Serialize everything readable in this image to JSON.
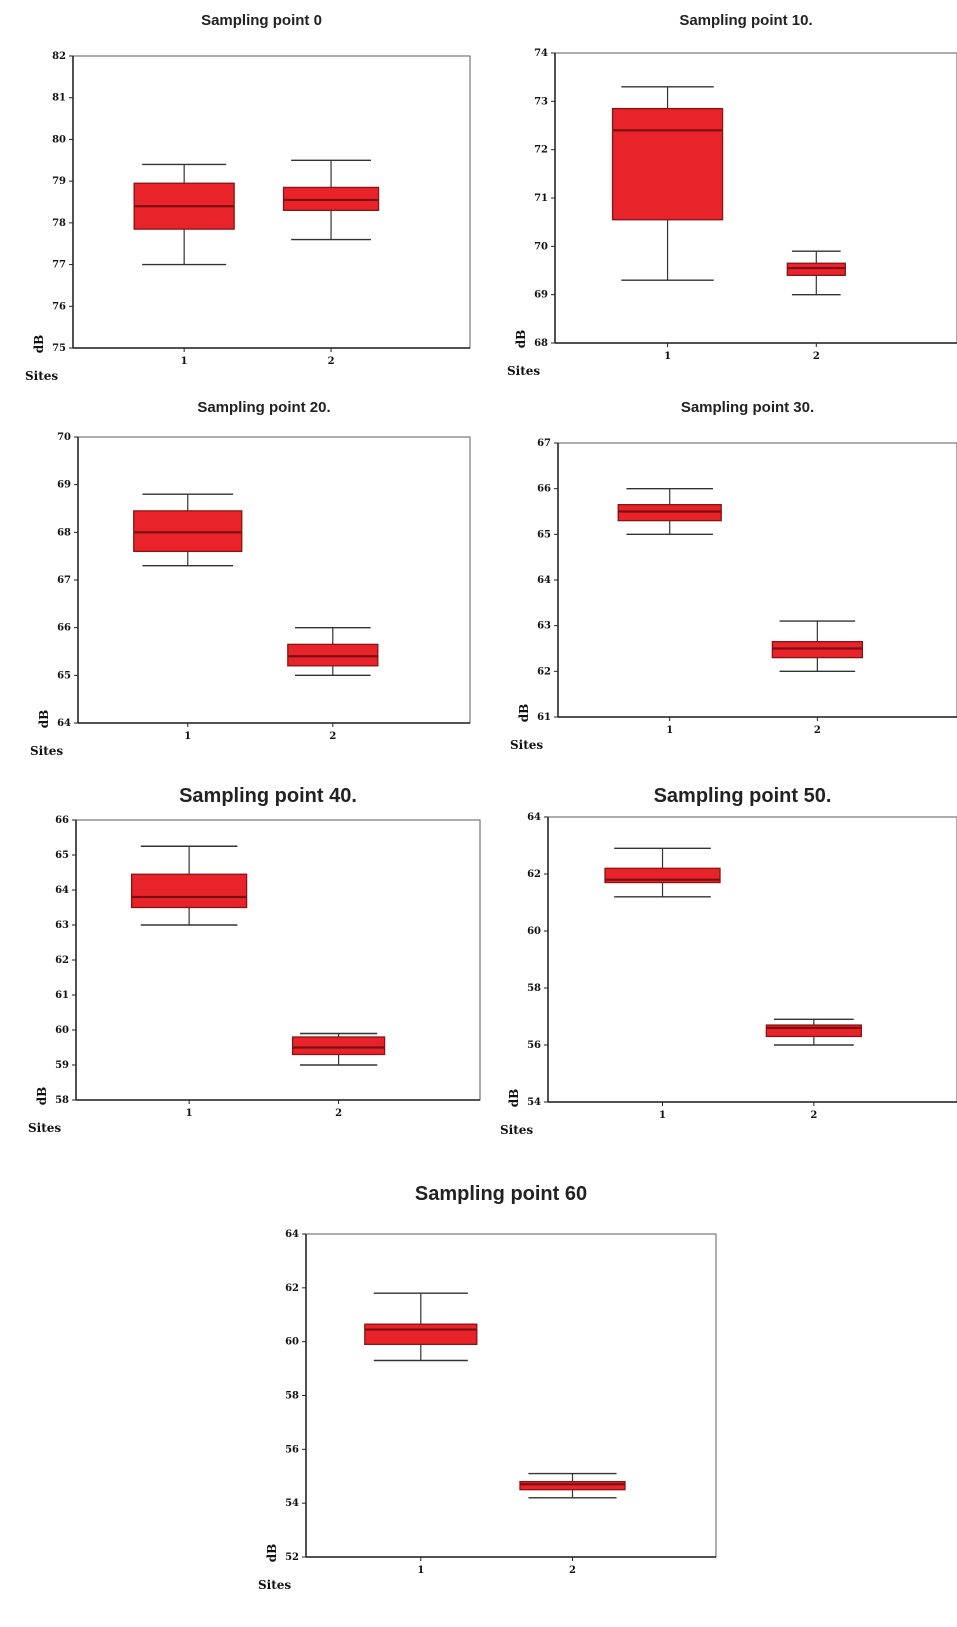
{
  "chart_data": [
    {
      "type": "box",
      "title": "Sampling point 0",
      "xlabel": "Sites",
      "ylabel": "dB",
      "categories": [
        "1",
        "2"
      ],
      "yticks": [
        "75",
        "76",
        "77",
        "78",
        "79",
        "80",
        "81",
        "82"
      ],
      "ylim": [
        75,
        82
      ],
      "boxes": [
        {
          "min": 77.0,
          "q1": 77.85,
          "median": 78.4,
          "q3": 78.95,
          "max": 79.4
        },
        {
          "min": 77.6,
          "q1": 78.3,
          "median": 78.55,
          "q3": 78.85,
          "max": 79.5
        }
      ]
    },
    {
      "type": "box",
      "title": "Sampling point 10.",
      "xlabel": "Sites",
      "ylabel": "dB",
      "categories": [
        "1",
        "2"
      ],
      "yticks": [
        "68",
        "69",
        "70",
        "71",
        "72",
        "73",
        "74"
      ],
      "ylim": [
        68,
        74
      ],
      "boxes": [
        {
          "min": 69.3,
          "q1": 70.55,
          "median": 72.4,
          "q3": 72.85,
          "max": 73.3
        },
        {
          "min": 69.0,
          "q1": 69.4,
          "median": 69.55,
          "q3": 69.65,
          "max": 69.9
        }
      ]
    },
    {
      "type": "box",
      "title": "Sampling point 20.",
      "xlabel": "Sites",
      "ylabel": "dB",
      "categories": [
        "1",
        "2"
      ],
      "yticks": [
        "64",
        "65",
        "66",
        "67",
        "68",
        "69",
        "70"
      ],
      "ylim": [
        64,
        70
      ],
      "boxes": [
        {
          "min": 67.3,
          "q1": 67.6,
          "median": 68.0,
          "q3": 68.45,
          "max": 68.8
        },
        {
          "min": 65.0,
          "q1": 65.2,
          "median": 65.4,
          "q3": 65.65,
          "max": 66.0
        }
      ]
    },
    {
      "type": "box",
      "title": "Sampling point 30.",
      "xlabel": "Sites",
      "ylabel": "dB",
      "categories": [
        "1",
        "2"
      ],
      "yticks": [
        "61",
        "62",
        "63",
        "64",
        "65",
        "66",
        "67"
      ],
      "ylim": [
        61,
        67
      ],
      "boxes": [
        {
          "min": 65.0,
          "q1": 65.3,
          "median": 65.5,
          "q3": 65.65,
          "max": 66.0
        },
        {
          "min": 62.0,
          "q1": 62.3,
          "median": 62.5,
          "q3": 62.65,
          "max": 63.1
        }
      ]
    },
    {
      "type": "box",
      "title": "Sampling point 40.",
      "xlabel": "Sites",
      "ylabel": "dB",
      "categories": [
        "1",
        "2"
      ],
      "yticks": [
        "58",
        "59",
        "60",
        "61",
        "62",
        "63",
        "64",
        "65",
        "66"
      ],
      "ylim": [
        58,
        66
      ],
      "boxes": [
        {
          "min": 63.0,
          "q1": 63.5,
          "median": 63.8,
          "q3": 64.45,
          "max": 65.25
        },
        {
          "min": 59.0,
          "q1": 59.3,
          "median": 59.5,
          "q3": 59.8,
          "max": 59.9
        }
      ]
    },
    {
      "type": "box",
      "title": "Sampling point 50.",
      "xlabel": "Sites",
      "ylabel": "dB",
      "categories": [
        "1",
        "2"
      ],
      "yticks": [
        "54",
        "56",
        "58",
        "60",
        "62",
        "64"
      ],
      "ylim": [
        54,
        64
      ],
      "boxes": [
        {
          "min": 61.2,
          "q1": 61.7,
          "median": 61.8,
          "q3": 62.2,
          "max": 62.9
        },
        {
          "min": 56.0,
          "q1": 56.3,
          "median": 56.6,
          "q3": 56.7,
          "max": 56.9
        }
      ]
    },
    {
      "type": "box",
      "title": "Sampling point 60",
      "xlabel": "Sites",
      "ylabel": "dB",
      "categories": [
        "1",
        "2"
      ],
      "yticks": [
        "52",
        "54",
        "56",
        "58",
        "60",
        "62",
        "64"
      ],
      "ylim": [
        52,
        64
      ],
      "boxes": [
        {
          "min": 59.3,
          "q1": 59.9,
          "median": 60.45,
          "q3": 60.65,
          "max": 61.8
        },
        {
          "min": 54.2,
          "q1": 54.5,
          "median": 54.7,
          "q3": 54.8,
          "max": 55.1
        }
      ]
    }
  ],
  "colors": {
    "box_fill": "#e8232a",
    "box_stroke": "#8a1414",
    "median": "#7a1010"
  }
}
